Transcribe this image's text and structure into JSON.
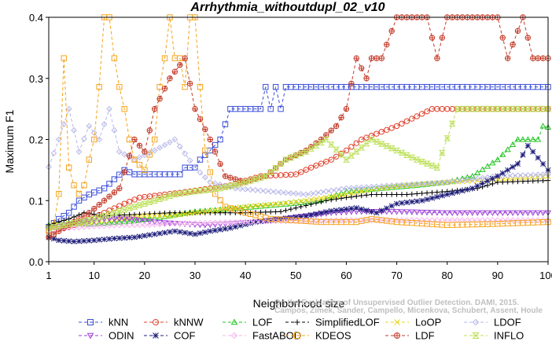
{
  "watermark": {
    "line1": "Campos, Zimek, Sander, Campello, Micenkova, Schubert, Assent, Houle",
    "line2": "On the Evaluation of Unsupervised Outlier Detection. DAMI, 2015."
  },
  "chart_data": {
    "type": "line",
    "title": "Arrhythmia_withoutdupl_02_v10",
    "xlabel": "Neighborhood size",
    "ylabel": "Maximum F1",
    "xlim": [
      1,
      100
    ],
    "ylim": [
      0,
      0.4
    ],
    "xticks": [
      1,
      10,
      20,
      30,
      40,
      50,
      60,
      70,
      80,
      90,
      100
    ],
    "yticks": [
      0.0,
      0.1,
      0.2,
      0.3,
      0.4
    ],
    "ytick_labels": [
      "0.0",
      "0.1",
      "0.2",
      "0.3",
      "0.4"
    ],
    "grid": false,
    "legend_position": "bottom",
    "series": [
      {
        "name": "kNN",
        "color": "#3b4fd8",
        "marker": "square",
        "points": [
          [
            1,
            0.057
          ],
          [
            3,
            0.07
          ],
          [
            5,
            0.08
          ],
          [
            7,
            0.1
          ],
          [
            9,
            0.11
          ],
          [
            12,
            0.12
          ],
          [
            16,
            0.15
          ],
          [
            18,
            0.143
          ],
          [
            27,
            0.143
          ],
          [
            28,
            0.154
          ],
          [
            30,
            0.154
          ],
          [
            31,
            0.167
          ],
          [
            33,
            0.182
          ],
          [
            35,
            0.2
          ],
          [
            37,
            0.25
          ],
          [
            43,
            0.25
          ],
          [
            44,
            0.286
          ],
          [
            45,
            0.25
          ],
          [
            46,
            0.286
          ],
          [
            47,
            0.25
          ],
          [
            48,
            0.286
          ],
          [
            100,
            0.286
          ]
        ]
      },
      {
        "name": "kNNW",
        "color": "#e0412b",
        "marker": "circle",
        "points": [
          [
            1,
            0.05
          ],
          [
            4,
            0.055
          ],
          [
            6,
            0.06
          ],
          [
            9,
            0.07
          ],
          [
            12,
            0.08
          ],
          [
            16,
            0.095
          ],
          [
            19,
            0.105
          ],
          [
            24,
            0.11
          ],
          [
            29,
            0.115
          ],
          [
            33,
            0.12
          ],
          [
            37,
            0.125
          ],
          [
            43,
            0.14
          ],
          [
            50,
            0.143
          ],
          [
            53,
            0.154
          ],
          [
            57,
            0.167
          ],
          [
            60,
            0.182
          ],
          [
            63,
            0.2
          ],
          [
            70,
            0.222
          ],
          [
            77,
            0.25
          ],
          [
            100,
            0.25
          ]
        ]
      },
      {
        "name": "LOF",
        "color": "#22c422",
        "marker": "triangle-up",
        "points": [
          [
            1,
            0.06
          ],
          [
            5,
            0.062
          ],
          [
            10,
            0.062
          ],
          [
            17,
            0.066
          ],
          [
            25,
            0.075
          ],
          [
            30,
            0.082
          ],
          [
            35,
            0.085
          ],
          [
            42,
            0.09
          ],
          [
            49,
            0.095
          ],
          [
            55,
            0.1
          ],
          [
            60,
            0.115
          ],
          [
            67,
            0.12
          ],
          [
            74,
            0.125
          ],
          [
            80,
            0.13
          ],
          [
            85,
            0.14
          ],
          [
            90,
            0.167
          ],
          [
            94,
            0.2
          ],
          [
            98,
            0.2
          ],
          [
            99,
            0.222
          ],
          [
            100,
            0.22
          ]
        ]
      },
      {
        "name": "SimplifiedLOF",
        "color": "#000000",
        "marker": "plus",
        "points": [
          [
            1,
            0.06
          ],
          [
            5,
            0.07
          ],
          [
            8,
            0.08
          ],
          [
            12,
            0.075
          ],
          [
            20,
            0.078
          ],
          [
            25,
            0.08
          ],
          [
            32,
            0.08
          ],
          [
            40,
            0.08
          ],
          [
            47,
            0.082
          ],
          [
            51,
            0.09
          ],
          [
            56,
            0.1
          ],
          [
            60,
            0.105
          ],
          [
            65,
            0.11
          ],
          [
            72,
            0.11
          ],
          [
            80,
            0.115
          ],
          [
            86,
            0.12
          ],
          [
            90,
            0.13
          ],
          [
            100,
            0.133
          ]
        ]
      },
      {
        "name": "LoOP",
        "color": "#e8d51c",
        "marker": "x",
        "points": [
          [
            1,
            0.055
          ],
          [
            5,
            0.06
          ],
          [
            10,
            0.065
          ],
          [
            15,
            0.07
          ],
          [
            20,
            0.075
          ],
          [
            25,
            0.075
          ],
          [
            30,
            0.08
          ],
          [
            35,
            0.085
          ],
          [
            40,
            0.09
          ],
          [
            47,
            0.095
          ],
          [
            52,
            0.1
          ],
          [
            60,
            0.11
          ],
          [
            66,
            0.12
          ],
          [
            72,
            0.125
          ],
          [
            80,
            0.13
          ],
          [
            90,
            0.135
          ],
          [
            100,
            0.14
          ]
        ]
      },
      {
        "name": "LDOF",
        "color": "#b7b7e8",
        "marker": "diamond",
        "points": [
          [
            1,
            0.155
          ],
          [
            3,
            0.2
          ],
          [
            5,
            0.25
          ],
          [
            7,
            0.18
          ],
          [
            9,
            0.222
          ],
          [
            11,
            0.2
          ],
          [
            13,
            0.25
          ],
          [
            15,
            0.18
          ],
          [
            18,
            0.167
          ],
          [
            22,
            0.182
          ],
          [
            26,
            0.2
          ],
          [
            30,
            0.154
          ],
          [
            33,
            0.13
          ],
          [
            38,
            0.12
          ],
          [
            45,
            0.115
          ],
          [
            52,
            0.11
          ],
          [
            60,
            0.12
          ],
          [
            70,
            0.125
          ],
          [
            80,
            0.13
          ],
          [
            90,
            0.14
          ],
          [
            100,
            0.143
          ]
        ]
      },
      {
        "name": "ODIN",
        "color": "#9b3fd8",
        "marker": "triangle-down",
        "points": [
          [
            1,
            0.055
          ],
          [
            4,
            0.06
          ],
          [
            8,
            0.065
          ],
          [
            12,
            0.07
          ],
          [
            17,
            0.07
          ],
          [
            22,
            0.065
          ],
          [
            27,
            0.062
          ],
          [
            32,
            0.06
          ],
          [
            37,
            0.062
          ],
          [
            42,
            0.065
          ],
          [
            47,
            0.07
          ],
          [
            52,
            0.075
          ],
          [
            57,
            0.08
          ],
          [
            62,
            0.082
          ],
          [
            70,
            0.082
          ],
          [
            80,
            0.08
          ],
          [
            90,
            0.08
          ],
          [
            100,
            0.08
          ]
        ]
      },
      {
        "name": "COF",
        "color": "#1d1d7a",
        "marker": "star",
        "points": [
          [
            1,
            0.04
          ],
          [
            3,
            0.035
          ],
          [
            6,
            0.033
          ],
          [
            10,
            0.035
          ],
          [
            14,
            0.038
          ],
          [
            18,
            0.04
          ],
          [
            22,
            0.045
          ],
          [
            26,
            0.05
          ],
          [
            30,
            0.045
          ],
          [
            33,
            0.05
          ],
          [
            37,
            0.055
          ],
          [
            42,
            0.065
          ],
          [
            47,
            0.07
          ],
          [
            52,
            0.075
          ],
          [
            57,
            0.083
          ],
          [
            62,
            0.088
          ],
          [
            66,
            0.08
          ],
          [
            70,
            0.095
          ],
          [
            75,
            0.1
          ],
          [
            80,
            0.11
          ],
          [
            85,
            0.12
          ],
          [
            90,
            0.14
          ],
          [
            94,
            0.16
          ],
          [
            96,
            0.19
          ],
          [
            98,
            0.17
          ],
          [
            100,
            0.15
          ]
        ]
      },
      {
        "name": "FastABOD",
        "color": "#f4b6ee",
        "marker": "diamond",
        "points": [
          [
            1,
            0.05
          ],
          [
            5,
            0.055
          ],
          [
            10,
            0.058
          ],
          [
            15,
            0.06
          ],
          [
            20,
            0.06
          ],
          [
            25,
            0.062
          ],
          [
            30,
            0.063
          ],
          [
            35,
            0.064
          ],
          [
            40,
            0.065
          ],
          [
            45,
            0.066
          ],
          [
            50,
            0.067
          ],
          [
            55,
            0.067
          ],
          [
            60,
            0.068
          ],
          [
            70,
            0.068
          ],
          [
            80,
            0.068
          ],
          [
            90,
            0.068
          ],
          [
            100,
            0.068
          ]
        ]
      },
      {
        "name": "KDEOS",
        "color": "#f5a31c",
        "marker": "square",
        "points": [
          [
            1,
            0.05
          ],
          [
            2,
            0.06
          ],
          [
            3,
            0.111
          ],
          [
            4,
            0.333
          ],
          [
            5,
            0.154
          ],
          [
            6,
            0.125
          ],
          [
            7,
            0.111
          ],
          [
            8,
            0.125
          ],
          [
            9,
            0.167
          ],
          [
            10,
            0.2
          ],
          [
            11,
            0.286
          ],
          [
            12,
            0.4
          ],
          [
            13,
            0.4
          ],
          [
            14,
            0.333
          ],
          [
            15,
            0.286
          ],
          [
            16,
            0.25
          ],
          [
            17,
            0.2
          ],
          [
            18,
            0.167
          ],
          [
            20,
            0.15
          ],
          [
            22,
            0.2
          ],
          [
            23,
            0.286
          ],
          [
            24,
            0.333
          ],
          [
            25,
            0.4
          ],
          [
            26,
            0.333
          ],
          [
            27,
            0.333
          ],
          [
            28,
            0.286
          ],
          [
            29,
            0.4
          ],
          [
            30,
            0.4
          ],
          [
            31,
            0.286
          ],
          [
            32,
            0.182
          ],
          [
            34,
            0.111
          ],
          [
            36,
            0.09
          ],
          [
            40,
            0.08
          ],
          [
            45,
            0.07
          ],
          [
            55,
            0.065
          ],
          [
            62,
            0.065
          ],
          [
            65,
            0.07
          ],
          [
            70,
            0.065
          ],
          [
            80,
            0.06
          ],
          [
            90,
            0.062
          ],
          [
            100,
            0.065
          ]
        ]
      },
      {
        "name": "LDF",
        "color": "#c43b2a",
        "marker": "circle-plus",
        "points": [
          [
            1,
            0.04
          ],
          [
            5,
            0.06
          ],
          [
            9,
            0.08
          ],
          [
            12,
            0.1
          ],
          [
            15,
            0.12
          ],
          [
            18,
            0.2
          ],
          [
            20,
            0.18
          ],
          [
            22,
            0.25
          ],
          [
            25,
            0.3
          ],
          [
            28,
            0.333
          ],
          [
            30,
            0.25
          ],
          [
            33,
            0.2
          ],
          [
            36,
            0.14
          ],
          [
            40,
            0.13
          ],
          [
            44,
            0.14
          ],
          [
            48,
            0.167
          ],
          [
            52,
            0.182
          ],
          [
            55,
            0.2
          ],
          [
            58,
            0.222
          ],
          [
            60,
            0.25
          ],
          [
            62,
            0.333
          ],
          [
            64,
            0.3
          ],
          [
            65,
            0.333
          ],
          [
            67,
            0.333
          ],
          [
            70,
            0.4
          ],
          [
            76,
            0.4
          ],
          [
            78,
            0.333
          ],
          [
            80,
            0.4
          ],
          [
            90,
            0.4
          ],
          [
            92,
            0.333
          ],
          [
            95,
            0.4
          ],
          [
            97,
            0.333
          ],
          [
            100,
            0.333
          ]
        ]
      },
      {
        "name": "INFLO",
        "color": "#bde05a",
        "marker": "hourglass",
        "points": [
          [
            1,
            0.055
          ],
          [
            4,
            0.06
          ],
          [
            7,
            0.065
          ],
          [
            10,
            0.07
          ],
          [
            14,
            0.08
          ],
          [
            18,
            0.09
          ],
          [
            22,
            0.1
          ],
          [
            26,
            0.11
          ],
          [
            30,
            0.115
          ],
          [
            35,
            0.12
          ],
          [
            40,
            0.13
          ],
          [
            44,
            0.14
          ],
          [
            48,
            0.167
          ],
          [
            52,
            0.18
          ],
          [
            56,
            0.2
          ],
          [
            60,
            0.167
          ],
          [
            65,
            0.2
          ],
          [
            70,
            0.182
          ],
          [
            74,
            0.167
          ],
          [
            78,
            0.154
          ],
          [
            82,
            0.25
          ],
          [
            86,
            0.25
          ],
          [
            90,
            0.25
          ],
          [
            95,
            0.25
          ],
          [
            100,
            0.25
          ]
        ]
      }
    ]
  }
}
